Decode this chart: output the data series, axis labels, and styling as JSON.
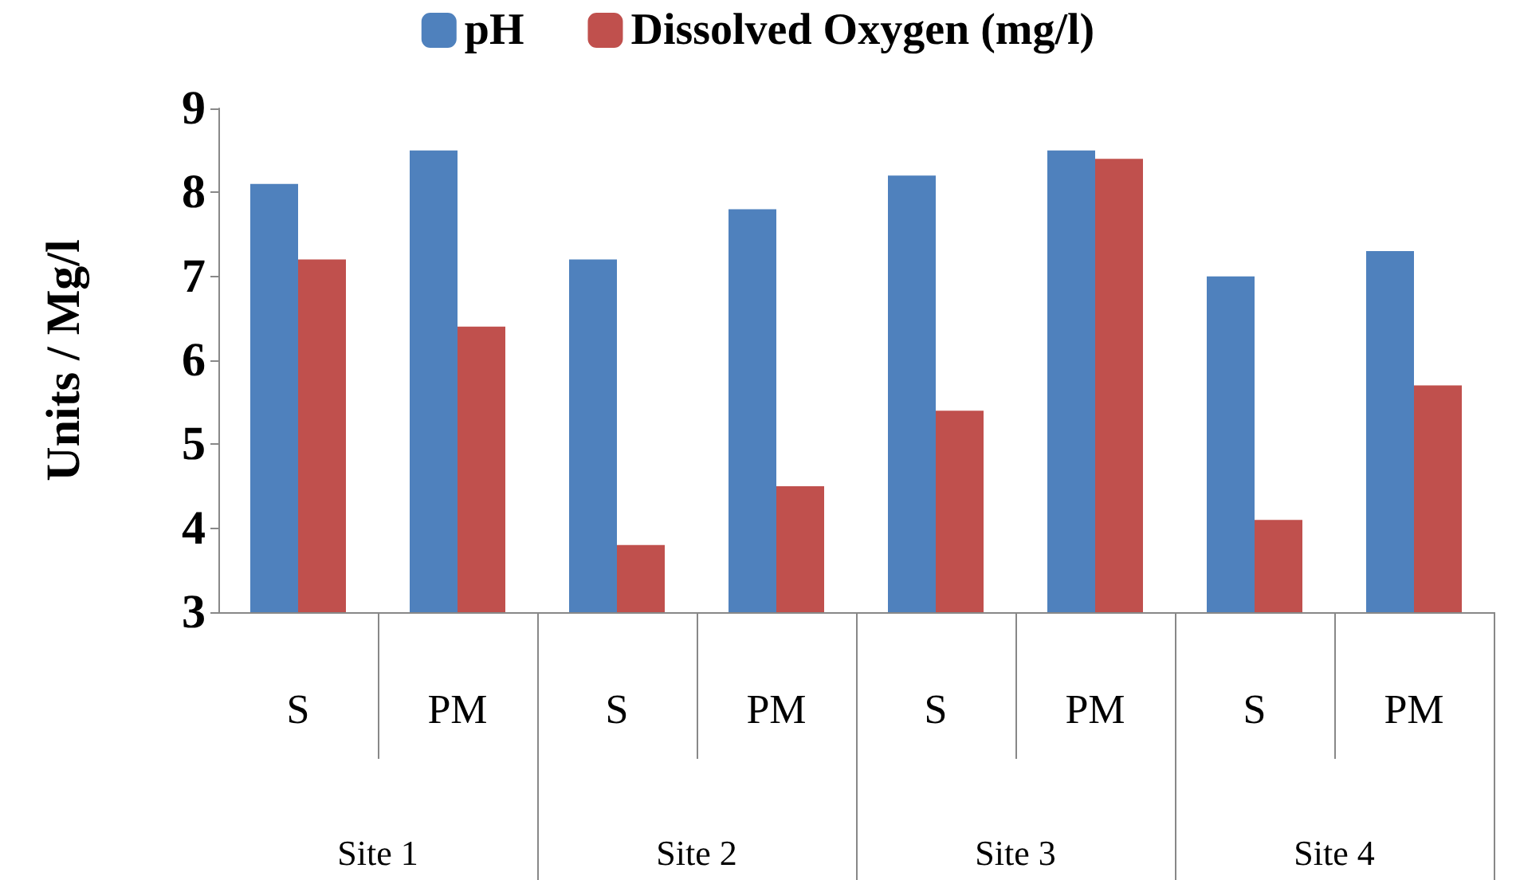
{
  "chart_data": {
    "type": "bar",
    "ylabel": "Units / Mg/l",
    "categories": [
      "S",
      "PM",
      "S",
      "PM",
      "S",
      "PM",
      "S",
      "PM"
    ],
    "annotations": [
      "Site 1",
      "Site 2",
      "Site 3",
      "Site 4"
    ],
    "series": [
      {
        "name": "pH",
        "color": "#4f81bd",
        "values": [
          8.1,
          8.5,
          7.2,
          7.8,
          8.2,
          8.5,
          7.0,
          7.3
        ]
      },
      {
        "name": "Dissolved Oxygen (mg/l)",
        "color": "#c0504d",
        "values": [
          7.2,
          6.4,
          3.8,
          4.5,
          5.4,
          8.4,
          4.1,
          5.7
        ]
      }
    ],
    "ylim": [
      3,
      9
    ],
    "yticks": [
      3,
      4,
      5,
      6,
      7,
      8,
      9
    ],
    "grid": false,
    "legend": "top"
  }
}
